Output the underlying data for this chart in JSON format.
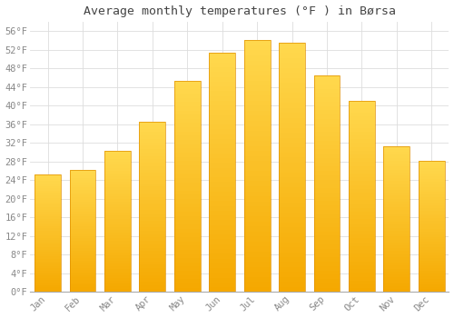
{
  "title": "Average monthly temperatures (°F ) in Børsa",
  "months": [
    "Jan",
    "Feb",
    "Mar",
    "Apr",
    "May",
    "Jun",
    "Jul",
    "Aug",
    "Sep",
    "Oct",
    "Nov",
    "Dec"
  ],
  "values": [
    25.3,
    26.1,
    30.3,
    36.5,
    45.3,
    51.3,
    54.0,
    53.4,
    46.4,
    41.0,
    31.3,
    28.2
  ],
  "bar_color_top": "#FFD84D",
  "bar_color_bottom": "#F5A800",
  "bar_edge_color": "#E09000",
  "background_color": "#FFFFFF",
  "grid_color": "#DDDDDD",
  "text_color": "#888888",
  "title_color": "#444444",
  "ylim": [
    0,
    58
  ],
  "yticks": [
    0,
    4,
    8,
    12,
    16,
    20,
    24,
    28,
    32,
    36,
    40,
    44,
    48,
    52,
    56
  ],
  "title_fontsize": 9.5,
  "tick_fontsize": 7.5,
  "bar_width": 0.75
}
